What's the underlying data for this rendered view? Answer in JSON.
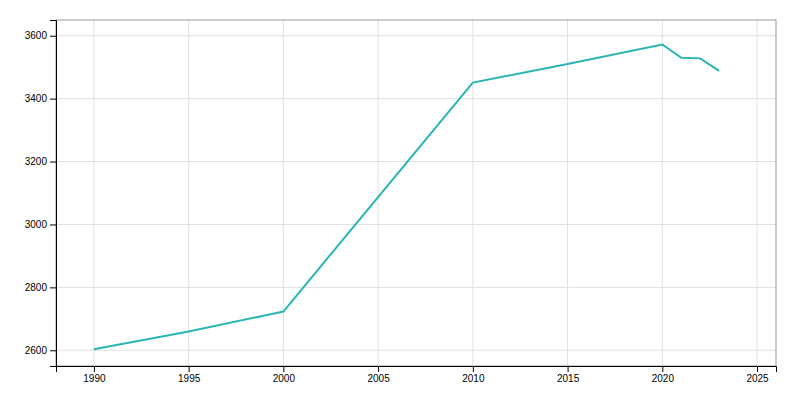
{
  "chart_data": {
    "type": "line",
    "x": [
      1990,
      1995,
      2000,
      2010,
      2015,
      2020,
      2021,
      2022,
      2023
    ],
    "values": [
      2603,
      2660,
      2723,
      3451,
      3510,
      3572,
      3530,
      3528,
      3488
    ],
    "color": "#2ab5b5",
    "xlim": [
      1988,
      2026
    ],
    "ylim": [
      2550,
      3650
    ],
    "xticks": [
      1990,
      1995,
      2000,
      2005,
      2010,
      2015,
      2020,
      2025
    ],
    "yticks": [
      2600,
      2800,
      3000,
      3200,
      3400,
      3600
    ],
    "grid": true
  }
}
